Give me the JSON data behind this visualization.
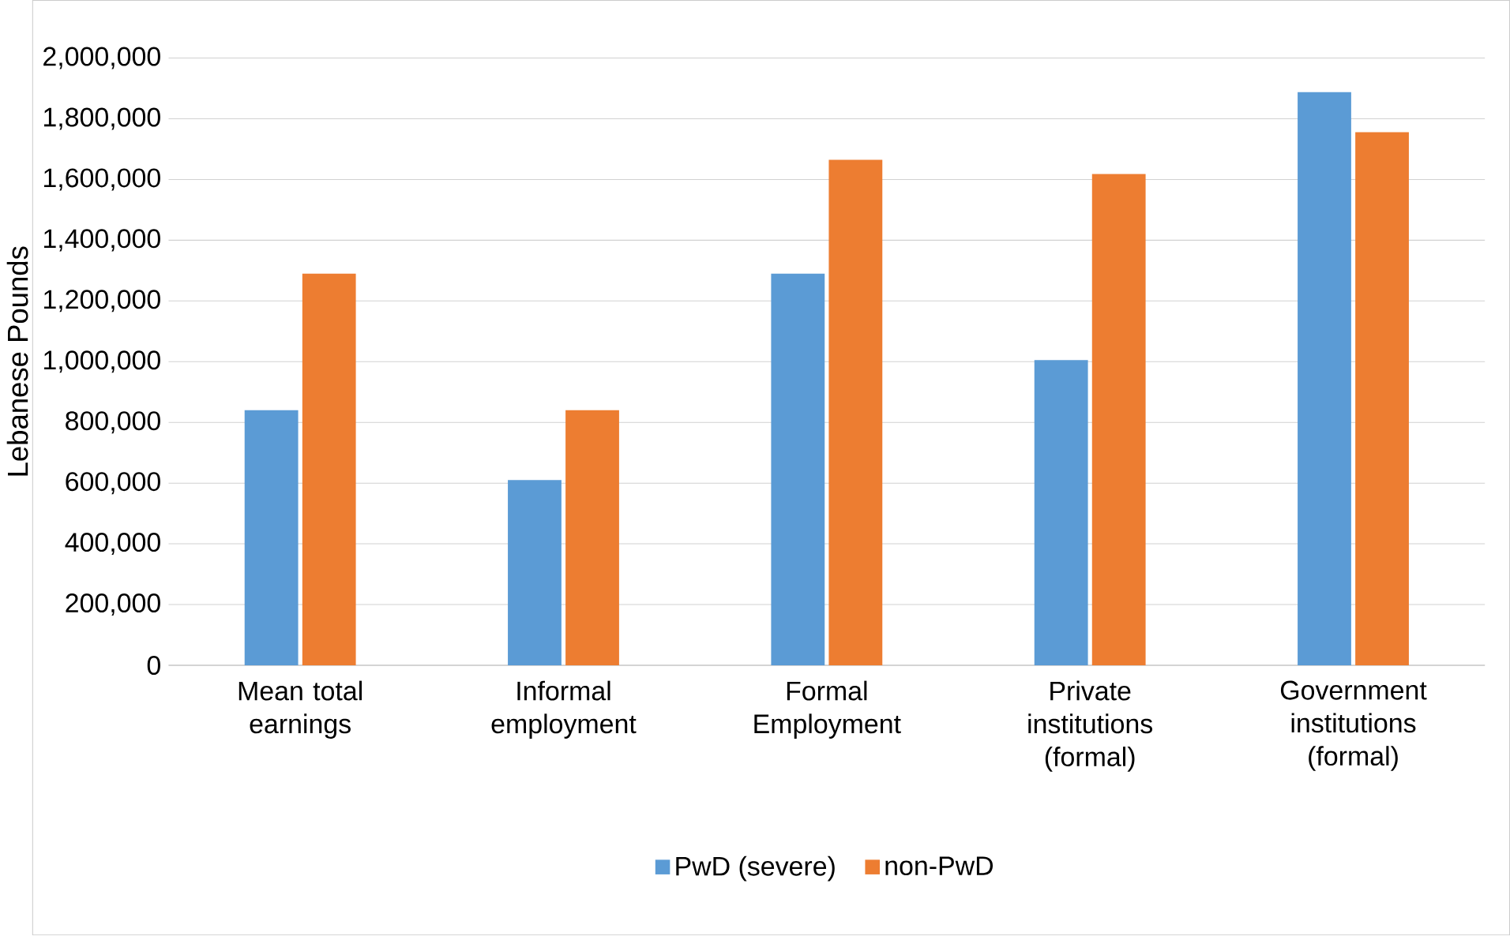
{
  "chart_data": {
    "type": "bar",
    "ylabel": "Lebanese Pounds",
    "categories": [
      "Mean total earnings",
      "Informal employment",
      "Formal Employment",
      "Private institutions (formal)",
      "Government institutions (formal)"
    ],
    "series": [
      {
        "name": "PwD (severe)",
        "color": "#5b9bd5",
        "values": [
          840000,
          610000,
          1290000,
          1005000,
          1888000
        ]
      },
      {
        "name": "non-PwD",
        "color": "#ed7d31",
        "values": [
          1290000,
          840000,
          1665000,
          1618000,
          1756000
        ]
      }
    ],
    "ylim": [
      0,
      2000000
    ],
    "yticks": [
      {
        "value": 0,
        "label": "0"
      },
      {
        "value": 200000,
        "label": "200,000"
      },
      {
        "value": 400000,
        "label": "400,000"
      },
      {
        "value": 600000,
        "label": "600,000"
      },
      {
        "value": 800000,
        "label": "800,000"
      },
      {
        "value": 1000000,
        "label": "1,000,000"
      },
      {
        "value": 1200000,
        "label": "1,200,000"
      },
      {
        "value": 1400000,
        "label": "1,400,000"
      },
      {
        "value": 1600000,
        "label": "1,600,000"
      },
      {
        "value": 1800000,
        "label": "1,800,000"
      },
      {
        "value": 2000000,
        "label": "2,000,000"
      }
    ],
    "grid": "y",
    "legend": "bottom"
  }
}
